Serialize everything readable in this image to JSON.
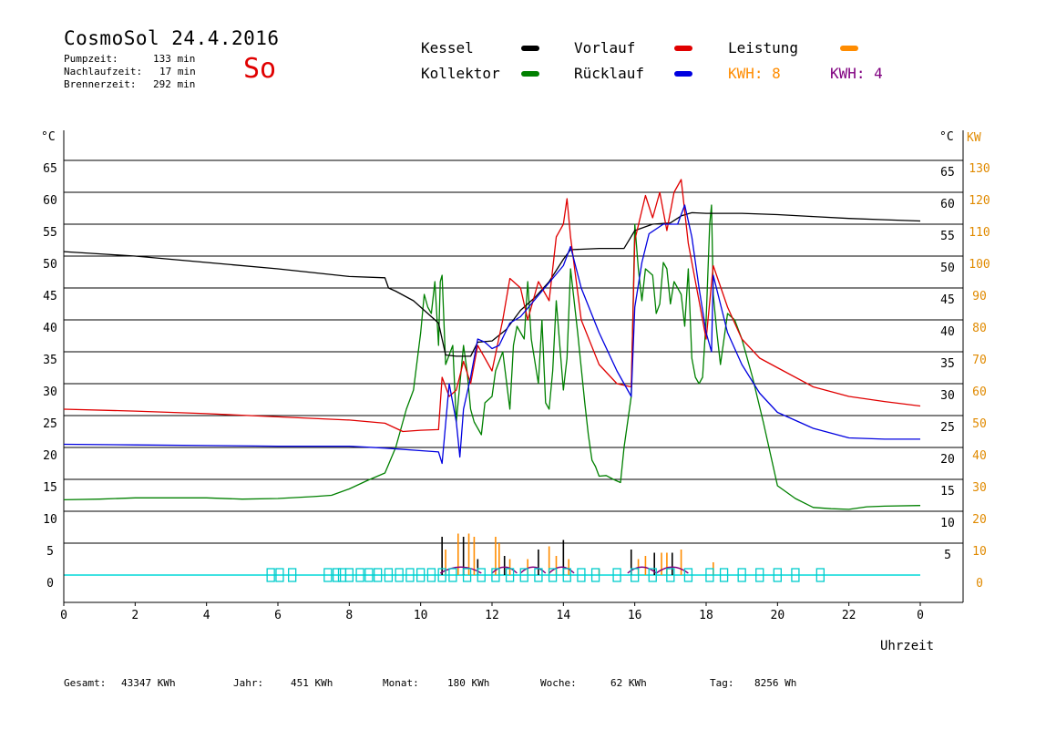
{
  "header": {
    "title": "CosmoSol 24.4.2016",
    "day": "So",
    "info": [
      {
        "label": "Pumpzeit:",
        "value": "133 min"
      },
      {
        "label": "Nachlaufzeit:",
        "value": "17 min"
      },
      {
        "label": "Brennerzeit:",
        "value": "292 min"
      }
    ]
  },
  "legend": {
    "kessel": {
      "label": "Kessel",
      "color": "#000000"
    },
    "vorlauf": {
      "label": "Vorlauf",
      "color": "#e00000"
    },
    "leistung": {
      "label": "Leistung",
      "color": "#ff8c00"
    },
    "kollektor": {
      "label": "Kollektor",
      "color": "#008000"
    },
    "ruecklauf": {
      "label": "Rücklauf",
      "color": "#0000e0"
    },
    "kwh1": {
      "label": "KWH: 8",
      "color": "#ff8c00"
    },
    "kwh2": {
      "label": "KWH: 4",
      "color": "#800080"
    }
  },
  "footer": {
    "gesamt": {
      "label": "Gesamt:",
      "value": "43347 KWh"
    },
    "jahr": {
      "label": "Jahr:",
      "value": "451 KWh"
    },
    "monat": {
      "label": "Monat:",
      "value": "180 KWh"
    },
    "woche": {
      "label": "Woche:",
      "value": "62 KWh"
    },
    "tag": {
      "label": "Tag:",
      "value": "8256 Wh"
    }
  },
  "chart_data": {
    "type": "line",
    "xlabel": "Uhrzeit",
    "ylabel_left": "°C",
    "ylabel_right_c": "°C",
    "ylabel_right_kw": "KW",
    "xlim": [
      0,
      24
    ],
    "ylim": [
      0,
      65
    ],
    "grid": true,
    "x_ticks": [
      "0",
      "2",
      "4",
      "6",
      "8",
      "10",
      "12",
      "14",
      "16",
      "18",
      "20",
      "22",
      "0"
    ],
    "y_ticks_left": [
      "0",
      "5",
      "10",
      "15",
      "20",
      "25",
      "30",
      "35",
      "40",
      "45",
      "50",
      "55",
      "60",
      "65"
    ],
    "y_ticks_right_c": [
      "5",
      "10",
      "15",
      "20",
      "25",
      "30",
      "35",
      "40",
      "45",
      "50",
      "55",
      "60",
      "65"
    ],
    "y_ticks_right_kw": [
      "0",
      "10",
      "20",
      "30",
      "40",
      "50",
      "60",
      "70",
      "80",
      "90",
      "100",
      "110",
      "120",
      "130"
    ],
    "series": [
      {
        "name": "Kessel",
        "color": "#000000",
        "points": [
          [
            0,
            50.7
          ],
          [
            2,
            50
          ],
          [
            4,
            49
          ],
          [
            6,
            48
          ],
          [
            8,
            46.8
          ],
          [
            9,
            46.6
          ],
          [
            9.1,
            45
          ],
          [
            9.3,
            44.5
          ],
          [
            9.8,
            43
          ],
          [
            10.2,
            41
          ],
          [
            10.5,
            39.5
          ],
          [
            10.7,
            34.5
          ],
          [
            11,
            34.3
          ],
          [
            11.4,
            34.3
          ],
          [
            11.6,
            36.5
          ],
          [
            12,
            36.7
          ],
          [
            12.4,
            38.5
          ],
          [
            12.8,
            41.5
          ],
          [
            13.2,
            43.5
          ],
          [
            13.6,
            46
          ],
          [
            14,
            49.5
          ],
          [
            14.2,
            51
          ],
          [
            15,
            51.2
          ],
          [
            15.7,
            51.2
          ],
          [
            16,
            54
          ],
          [
            16.5,
            55
          ],
          [
            17,
            55.2
          ],
          [
            17.3,
            56.3
          ],
          [
            17.6,
            56.8
          ],
          [
            18,
            56.7
          ],
          [
            19,
            56.7
          ],
          [
            20,
            56.5
          ],
          [
            21,
            56.2
          ],
          [
            22,
            55.9
          ],
          [
            23,
            55.7
          ],
          [
            24,
            55.5
          ]
        ]
      },
      {
        "name": "Vorlauf",
        "color": "#e00000",
        "points": [
          [
            0,
            26
          ],
          [
            2,
            25.7
          ],
          [
            4,
            25.3
          ],
          [
            6,
            24.8
          ],
          [
            8,
            24.3
          ],
          [
            9,
            23.8
          ],
          [
            9.5,
            22.5
          ],
          [
            10,
            22.7
          ],
          [
            10.5,
            22.8
          ],
          [
            10.6,
            31
          ],
          [
            10.8,
            28
          ],
          [
            11,
            29
          ],
          [
            11.2,
            33.5
          ],
          [
            11.4,
            30
          ],
          [
            11.6,
            36
          ],
          [
            11.8,
            34
          ],
          [
            12,
            32
          ],
          [
            12.3,
            40
          ],
          [
            12.5,
            46.5
          ],
          [
            12.8,
            45
          ],
          [
            13,
            40
          ],
          [
            13.3,
            46
          ],
          [
            13.6,
            43
          ],
          [
            13.8,
            53
          ],
          [
            14,
            55
          ],
          [
            14.1,
            59
          ],
          [
            14.2,
            53
          ],
          [
            14.5,
            40
          ],
          [
            15,
            33
          ],
          [
            15.5,
            30
          ],
          [
            15.9,
            29.5
          ],
          [
            16,
            52.5
          ],
          [
            16.3,
            59.5
          ],
          [
            16.5,
            56
          ],
          [
            16.7,
            60
          ],
          [
            16.9,
            54
          ],
          [
            17.1,
            60
          ],
          [
            17.3,
            62
          ],
          [
            17.5,
            52
          ],
          [
            17.8,
            43
          ],
          [
            18,
            37
          ],
          [
            18.2,
            48.5
          ],
          [
            18.6,
            42
          ],
          [
            19,
            37
          ],
          [
            19.5,
            34
          ],
          [
            20,
            32.5
          ],
          [
            21,
            29.5
          ],
          [
            22,
            28
          ],
          [
            23,
            27.2
          ],
          [
            24,
            26.5
          ]
        ]
      },
      {
        "name": "Rücklauf",
        "color": "#0000e0",
        "points": [
          [
            0,
            20.5
          ],
          [
            2,
            20.4
          ],
          [
            4,
            20.3
          ],
          [
            6,
            20.2
          ],
          [
            8,
            20.2
          ],
          [
            9,
            19.9
          ],
          [
            10,
            19.5
          ],
          [
            10.5,
            19.3
          ],
          [
            10.6,
            17.5
          ],
          [
            10.8,
            30
          ],
          [
            11,
            24
          ],
          [
            11.1,
            18.5
          ],
          [
            11.2,
            26
          ],
          [
            11.4,
            31
          ],
          [
            11.6,
            37
          ],
          [
            11.8,
            36.5
          ],
          [
            12,
            35.5
          ],
          [
            12.2,
            36
          ],
          [
            12.5,
            39.5
          ],
          [
            12.8,
            40.5
          ],
          [
            13.1,
            42.5
          ],
          [
            13.4,
            44.5
          ],
          [
            13.7,
            46.5
          ],
          [
            14,
            48.5
          ],
          [
            14.2,
            51.5
          ],
          [
            14.5,
            45
          ],
          [
            15,
            38
          ],
          [
            15.5,
            32
          ],
          [
            15.9,
            28
          ],
          [
            16,
            42
          ],
          [
            16.2,
            49
          ],
          [
            16.4,
            53.5
          ],
          [
            16.8,
            55
          ],
          [
            17.2,
            55
          ],
          [
            17.4,
            58
          ],
          [
            17.6,
            53
          ],
          [
            17.8,
            45
          ],
          [
            18,
            38
          ],
          [
            18.15,
            35
          ],
          [
            18.2,
            47
          ],
          [
            18.6,
            38
          ],
          [
            19,
            33
          ],
          [
            19.5,
            28.5
          ],
          [
            20,
            25.5
          ],
          [
            21,
            23
          ],
          [
            22,
            21.5
          ],
          [
            23,
            21.3
          ],
          [
            24,
            21.3
          ]
        ]
      },
      {
        "name": "Kollektor",
        "color": "#008000",
        "points": [
          [
            0,
            11.8
          ],
          [
            1,
            11.9
          ],
          [
            2,
            12.1
          ],
          [
            3,
            12.1
          ],
          [
            4,
            12.1
          ],
          [
            5,
            11.9
          ],
          [
            6,
            12
          ],
          [
            7,
            12.3
          ],
          [
            7.5,
            12.5
          ],
          [
            8,
            13.5
          ],
          [
            8.5,
            14.8
          ],
          [
            9,
            16
          ],
          [
            9.3,
            20
          ],
          [
            9.6,
            26
          ],
          [
            9.8,
            29
          ],
          [
            10,
            38
          ],
          [
            10.1,
            44
          ],
          [
            10.2,
            42
          ],
          [
            10.3,
            41
          ],
          [
            10.4,
            46
          ],
          [
            10.5,
            36
          ],
          [
            10.55,
            46
          ],
          [
            10.6,
            47
          ],
          [
            10.7,
            33
          ],
          [
            10.9,
            36
          ],
          [
            11,
            24
          ],
          [
            11.2,
            36
          ],
          [
            11.3,
            32
          ],
          [
            11.4,
            26
          ],
          [
            11.5,
            24
          ],
          [
            11.7,
            22
          ],
          [
            11.8,
            27
          ],
          [
            12,
            28
          ],
          [
            12.1,
            32
          ],
          [
            12.3,
            35
          ],
          [
            12.5,
            26
          ],
          [
            12.6,
            36
          ],
          [
            12.7,
            39
          ],
          [
            12.9,
            37
          ],
          [
            13,
            46
          ],
          [
            13.1,
            37
          ],
          [
            13.3,
            30
          ],
          [
            13.4,
            40
          ],
          [
            13.5,
            27
          ],
          [
            13.6,
            26
          ],
          [
            13.7,
            32
          ],
          [
            13.8,
            43
          ],
          [
            13.9,
            36
          ],
          [
            14,
            29
          ],
          [
            14.1,
            34
          ],
          [
            14.2,
            48
          ],
          [
            14.4,
            38
          ],
          [
            14.6,
            27
          ],
          [
            14.7,
            22
          ],
          [
            14.8,
            18
          ],
          [
            14.9,
            17
          ],
          [
            15,
            15.5
          ],
          [
            15.2,
            15.6
          ],
          [
            15.4,
            15
          ],
          [
            15.6,
            14.5
          ],
          [
            15.7,
            20
          ],
          [
            15.9,
            28
          ],
          [
            16,
            55
          ],
          [
            16.1,
            48
          ],
          [
            16.2,
            43
          ],
          [
            16.3,
            48
          ],
          [
            16.5,
            47
          ],
          [
            16.6,
            41
          ],
          [
            16.7,
            42.5
          ],
          [
            16.8,
            49
          ],
          [
            16.9,
            48
          ],
          [
            17,
            42.5
          ],
          [
            17.1,
            46
          ],
          [
            17.2,
            45
          ],
          [
            17.3,
            44
          ],
          [
            17.4,
            39
          ],
          [
            17.5,
            48
          ],
          [
            17.6,
            34
          ],
          [
            17.7,
            31
          ],
          [
            17.8,
            30
          ],
          [
            17.9,
            31
          ],
          [
            18,
            40
          ],
          [
            18.1,
            55
          ],
          [
            18.15,
            58
          ],
          [
            18.2,
            44
          ],
          [
            18.3,
            38
          ],
          [
            18.4,
            33
          ],
          [
            18.6,
            41
          ],
          [
            18.8,
            40
          ],
          [
            19,
            37
          ],
          [
            19.3,
            31
          ],
          [
            19.6,
            24
          ],
          [
            19.8,
            19
          ],
          [
            20,
            14
          ],
          [
            20.5,
            12
          ],
          [
            21,
            10.6
          ],
          [
            21.5,
            10.4
          ],
          [
            22,
            10.3
          ],
          [
            22.5,
            10.7
          ],
          [
            23,
            10.8
          ],
          [
            24,
            10.9
          ]
        ]
      }
    ],
    "power_bars": {
      "name": "Leistung",
      "color": "#ff8c00",
      "dark": "#000000",
      "purple": "#800080",
      "values_c": [
        [
          10.6,
          6
        ],
        [
          10.7,
          4
        ],
        [
          11.05,
          6.5
        ],
        [
          11.2,
          6
        ],
        [
          11.35,
          6.5
        ],
        [
          11.5,
          6
        ],
        [
          11.6,
          2.5
        ],
        [
          12.1,
          6
        ],
        [
          12.2,
          5
        ],
        [
          12.35,
          3
        ],
        [
          12.5,
          2.5
        ],
        [
          13,
          2.5
        ],
        [
          13.3,
          4
        ],
        [
          13.6,
          4.5
        ],
        [
          13.8,
          3
        ],
        [
          14,
          5.5
        ],
        [
          14.15,
          2.5
        ],
        [
          15,
          1
        ],
        [
          15.9,
          4
        ],
        [
          16.1,
          2.5
        ],
        [
          16.3,
          3
        ],
        [
          16.55,
          3.5
        ],
        [
          16.75,
          3.5
        ],
        [
          16.9,
          3.5
        ],
        [
          17.05,
          3.5
        ],
        [
          17.3,
          4
        ],
        [
          18.2,
          2
        ]
      ]
    },
    "pump_markers": [
      5.8,
      6.05,
      6.4,
      7.4,
      7.65,
      7.8,
      8,
      8.3,
      8.55,
      8.8,
      9.1,
      9.4,
      9.7,
      10.0,
      10.3,
      10.6,
      10.9,
      11.3,
      11.7,
      12.1,
      12.5,
      12.9,
      13.3,
      13.7,
      14.1,
      14.5,
      14.9,
      15.5,
      16,
      16.5,
      17,
      17.5,
      18.1,
      18.5,
      19,
      19.5,
      20,
      20.5,
      21.2
    ]
  }
}
